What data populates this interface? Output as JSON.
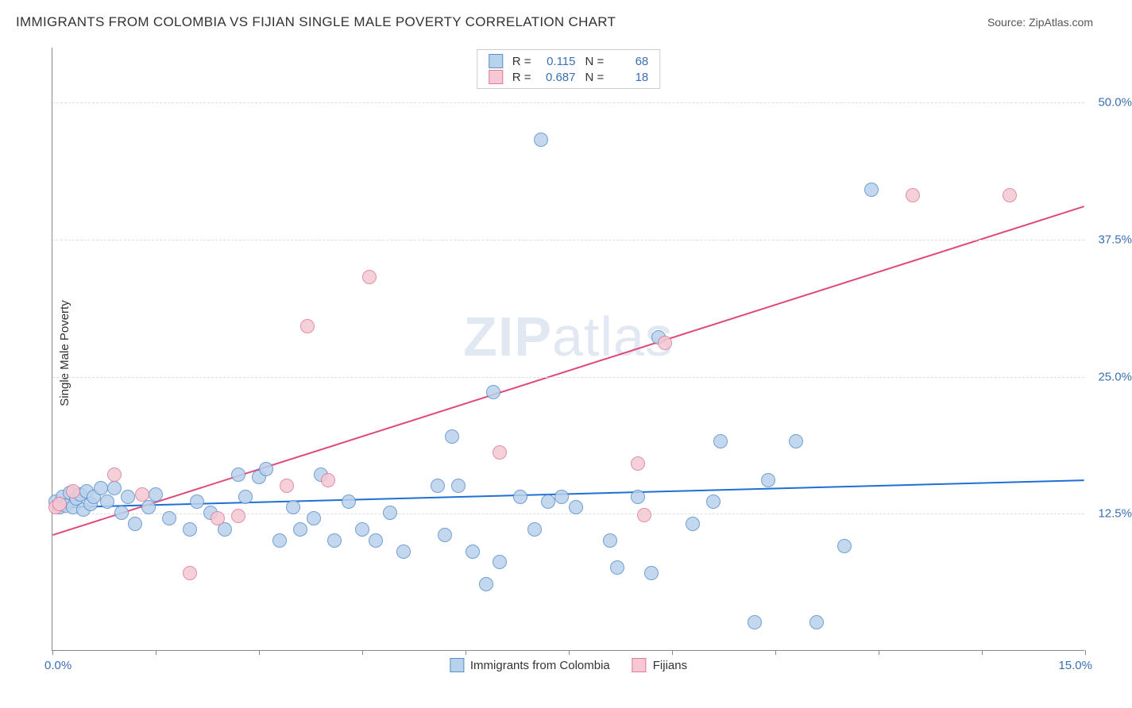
{
  "title": "IMMIGRANTS FROM COLOMBIA VS FIJIAN SINGLE MALE POVERTY CORRELATION CHART",
  "source": "Source: ZipAtlas.com",
  "ylabel": "Single Male Poverty",
  "watermark_a": "ZIP",
  "watermark_b": "atlas",
  "chart": {
    "type": "scatter",
    "background_color": "#ffffff",
    "grid_color": "#dddddd",
    "axis_color": "#888888",
    "label_color": "#3b6fb6",
    "xlim": [
      0,
      15
    ],
    "ylim": [
      0,
      55
    ],
    "ytick_values": [
      12.5,
      25.0,
      37.5,
      50.0
    ],
    "ytick_labels": [
      "12.5%",
      "25.0%",
      "37.5%",
      "50.0%"
    ],
    "xtick_values": [
      0,
      1.5,
      3,
      4.5,
      6,
      7.5,
      9,
      10.5,
      12,
      13.5,
      15
    ],
    "xaxis_label_left": "0.0%",
    "xaxis_label_right": "15.0%",
    "point_radius": 9,
    "series": [
      {
        "name": "Immigrants from Colombia",
        "fill": "#b9d2ec",
        "stroke": "#5a8fc8",
        "r_value": "0.115",
        "n_value": "68",
        "trend": {
          "y_at_x0": 13.0,
          "y_at_xmax": 15.5,
          "color": "#1f6fd4",
          "width": 2
        },
        "points": [
          [
            0.05,
            13.5
          ],
          [
            0.1,
            13.0
          ],
          [
            0.15,
            14.0
          ],
          [
            0.2,
            13.2
          ],
          [
            0.25,
            14.3
          ],
          [
            0.3,
            13.0
          ],
          [
            0.35,
            13.8
          ],
          [
            0.4,
            14.2
          ],
          [
            0.45,
            12.8
          ],
          [
            0.5,
            14.5
          ],
          [
            0.55,
            13.3
          ],
          [
            0.6,
            14.0
          ],
          [
            0.7,
            14.8
          ],
          [
            0.8,
            13.5
          ],
          [
            0.9,
            14.8
          ],
          [
            1.0,
            12.5
          ],
          [
            1.1,
            14.0
          ],
          [
            1.2,
            11.5
          ],
          [
            1.4,
            13.0
          ],
          [
            1.5,
            14.2
          ],
          [
            1.7,
            12.0
          ],
          [
            2.0,
            11.0
          ],
          [
            2.1,
            13.5
          ],
          [
            2.3,
            12.5
          ],
          [
            2.5,
            11.0
          ],
          [
            2.7,
            16.0
          ],
          [
            2.8,
            14.0
          ],
          [
            3.0,
            15.8
          ],
          [
            3.1,
            16.5
          ],
          [
            3.3,
            10.0
          ],
          [
            3.5,
            13.0
          ],
          [
            3.6,
            11.0
          ],
          [
            3.8,
            12.0
          ],
          [
            3.9,
            16.0
          ],
          [
            4.1,
            10.0
          ],
          [
            4.3,
            13.5
          ],
          [
            4.5,
            11.0
          ],
          [
            4.7,
            10.0
          ],
          [
            4.9,
            12.5
          ],
          [
            5.1,
            9.0
          ],
          [
            5.6,
            15.0
          ],
          [
            5.7,
            10.5
          ],
          [
            5.8,
            19.5
          ],
          [
            5.9,
            15.0
          ],
          [
            6.1,
            9.0
          ],
          [
            6.3,
            6.0
          ],
          [
            6.4,
            23.5
          ],
          [
            6.5,
            8.0
          ],
          [
            6.8,
            14.0
          ],
          [
            7.0,
            11.0
          ],
          [
            7.1,
            46.5
          ],
          [
            7.2,
            13.5
          ],
          [
            7.4,
            14.0
          ],
          [
            7.6,
            13.0
          ],
          [
            8.1,
            10.0
          ],
          [
            8.2,
            7.5
          ],
          [
            8.5,
            14.0
          ],
          [
            8.7,
            7.0
          ],
          [
            8.8,
            28.5
          ],
          [
            9.3,
            11.5
          ],
          [
            9.6,
            13.5
          ],
          [
            9.7,
            19.0
          ],
          [
            10.2,
            2.5
          ],
          [
            10.4,
            15.5
          ],
          [
            10.8,
            19.0
          ],
          [
            11.1,
            2.5
          ],
          [
            11.5,
            9.5
          ],
          [
            11.9,
            42.0
          ]
        ]
      },
      {
        "name": "Fijians",
        "fill": "#f5c8d3",
        "stroke": "#e07a9a",
        "r_value": "0.687",
        "n_value": "18",
        "trend": {
          "y_at_x0": 10.5,
          "y_at_xmax": 40.5,
          "color": "#e04a7a",
          "width": 2
        },
        "points": [
          [
            0.05,
            13.0
          ],
          [
            0.1,
            13.3
          ],
          [
            0.3,
            14.5
          ],
          [
            0.9,
            16.0
          ],
          [
            1.3,
            14.2
          ],
          [
            2.0,
            7.0
          ],
          [
            2.4,
            12.0
          ],
          [
            2.7,
            12.2
          ],
          [
            3.4,
            15.0
          ],
          [
            3.7,
            29.5
          ],
          [
            4.0,
            15.5
          ],
          [
            4.6,
            34.0
          ],
          [
            6.5,
            18.0
          ],
          [
            8.5,
            17.0
          ],
          [
            8.6,
            12.3
          ],
          [
            8.9,
            28.0
          ],
          [
            12.5,
            41.5
          ],
          [
            13.9,
            41.5
          ]
        ]
      }
    ]
  },
  "legend": {
    "series1": "Immigrants from Colombia",
    "series2": "Fijians"
  }
}
